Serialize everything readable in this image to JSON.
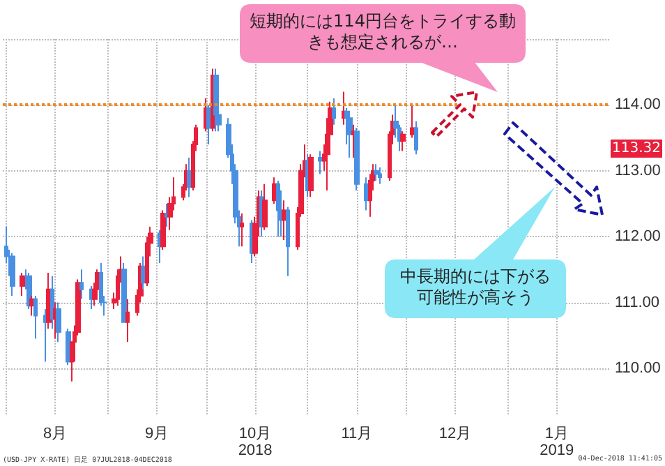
{
  "chart_data": {
    "type": "candlestick",
    "x": [
      "2018-08-01",
      "2018-08-02",
      "2018-08-03",
      "2018-08-06",
      "2018-08-07",
      "2018-08-08",
      "2018-08-09",
      "2018-08-10",
      "2018-08-13",
      "2018-08-14",
      "2018-08-15",
      "2018-08-16",
      "2018-08-17",
      "2018-08-20",
      "2018-08-21",
      "2018-08-22",
      "2018-08-23",
      "2018-08-24",
      "2018-08-27",
      "2018-08-28",
      "2018-08-29",
      "2018-08-30",
      "2018-08-31",
      "2018-09-03",
      "2018-09-04",
      "2018-09-05",
      "2018-09-06",
      "2018-09-07",
      "2018-09-10",
      "2018-09-11",
      "2018-09-12",
      "2018-09-13",
      "2018-09-14",
      "2018-09-17",
      "2018-09-18",
      "2018-09-19",
      "2018-09-20",
      "2018-09-21",
      "2018-09-24",
      "2018-09-25",
      "2018-09-26",
      "2018-09-27",
      "2018-09-28",
      "2018-10-01",
      "2018-10-02",
      "2018-10-03",
      "2018-10-04",
      "2018-10-05",
      "2018-10-08",
      "2018-10-09",
      "2018-10-10",
      "2018-10-11",
      "2018-10-12",
      "2018-10-15",
      "2018-10-16",
      "2018-10-17",
      "2018-10-18",
      "2018-10-19",
      "2018-10-22",
      "2018-10-23",
      "2018-10-24",
      "2018-10-25",
      "2018-10-26",
      "2018-10-29",
      "2018-10-30",
      "2018-10-31",
      "2018-11-01",
      "2018-11-02",
      "2018-11-05",
      "2018-11-06",
      "2018-11-07",
      "2018-11-08",
      "2018-11-09",
      "2018-11-12",
      "2018-11-13",
      "2018-11-14",
      "2018-11-15",
      "2018-11-16",
      "2018-11-19",
      "2018-11-20",
      "2018-11-21",
      "2018-11-22",
      "2018-11-23",
      "2018-11-26",
      "2018-11-27",
      "2018-11-28",
      "2018-11-29",
      "2018-11-30",
      "2018-12-03",
      "2018-12-04"
    ],
    "ohlc": [
      [
        111.85,
        112.15,
        111.6,
        111.7
      ],
      [
        111.7,
        111.8,
        111.4,
        111.7
      ],
      [
        111.7,
        111.75,
        111.1,
        111.25
      ],
      [
        111.25,
        111.45,
        111.1,
        111.4
      ],
      [
        111.4,
        111.5,
        111.2,
        111.4
      ],
      [
        111.4,
        111.45,
        110.9,
        110.95
      ],
      [
        110.95,
        111.1,
        110.8,
        111.05
      ],
      [
        111.05,
        111.1,
        110.45,
        110.8
      ],
      [
        110.8,
        110.9,
        110.1,
        110.7
      ],
      [
        110.7,
        111.45,
        110.6,
        111.2
      ],
      [
        111.2,
        111.4,
        110.6,
        110.75
      ],
      [
        110.75,
        111.0,
        110.45,
        110.9
      ],
      [
        110.9,
        111.0,
        110.4,
        110.55
      ],
      [
        110.55,
        110.6,
        110.05,
        110.1
      ],
      [
        110.1,
        110.4,
        109.8,
        110.4
      ],
      [
        110.4,
        110.65,
        110.1,
        110.55
      ],
      [
        110.55,
        111.35,
        110.5,
        111.3
      ],
      [
        111.3,
        111.5,
        111.05,
        111.2
      ],
      [
        111.2,
        111.25,
        110.9,
        111.05
      ],
      [
        111.05,
        111.3,
        110.95,
        111.2
      ],
      [
        111.2,
        111.5,
        111.05,
        111.45
      ],
      [
        111.45,
        111.6,
        110.95,
        111.0
      ],
      [
        111.0,
        111.1,
        110.8,
        111.0
      ],
      [
        111.0,
        111.15,
        110.9,
        111.05
      ],
      [
        111.05,
        111.5,
        110.95,
        111.4
      ],
      [
        111.4,
        111.7,
        111.3,
        111.5
      ],
      [
        111.5,
        111.6,
        110.7,
        110.7
      ],
      [
        110.7,
        111.05,
        110.4,
        110.85
      ],
      [
        110.85,
        111.2,
        110.8,
        111.1
      ],
      [
        111.1,
        111.6,
        111.0,
        111.55
      ],
      [
        111.55,
        111.7,
        111.2,
        111.3
      ],
      [
        111.3,
        112.0,
        111.25,
        111.9
      ],
      [
        111.9,
        112.15,
        111.7,
        112.05
      ],
      [
        112.05,
        112.1,
        111.6,
        111.85
      ],
      [
        111.85,
        112.4,
        111.8,
        112.35
      ],
      [
        112.35,
        112.5,
        112.15,
        112.3
      ],
      [
        112.3,
        112.6,
        112.1,
        112.5
      ],
      [
        112.5,
        112.9,
        112.4,
        112.6
      ],
      [
        112.6,
        112.8,
        112.55,
        112.75
      ],
      [
        112.75,
        113.1,
        112.7,
        113.0
      ],
      [
        113.0,
        113.2,
        112.6,
        112.75
      ],
      [
        112.75,
        113.45,
        112.7,
        113.4
      ],
      [
        113.4,
        113.7,
        113.3,
        113.65
      ],
      [
        113.65,
        114.1,
        113.6,
        113.95
      ],
      [
        113.95,
        114.0,
        113.4,
        113.65
      ],
      [
        113.65,
        114.55,
        113.6,
        114.45
      ],
      [
        114.45,
        114.55,
        113.6,
        113.85
      ],
      [
        113.85,
        114.0,
        113.6,
        113.7
      ],
      [
        113.7,
        113.8,
        113.2,
        113.25
      ],
      [
        113.25,
        113.4,
        112.8,
        113.0
      ],
      [
        113.0,
        113.1,
        112.2,
        112.3
      ],
      [
        112.3,
        112.4,
        111.85,
        112.15
      ],
      [
        112.15,
        112.35,
        111.85,
        112.2
      ],
      [
        112.2,
        112.25,
        111.6,
        111.75
      ],
      [
        111.75,
        112.3,
        111.7,
        112.2
      ],
      [
        112.2,
        112.7,
        112.0,
        112.6
      ],
      [
        112.6,
        112.7,
        112.0,
        112.15
      ],
      [
        112.15,
        112.8,
        112.1,
        112.55
      ],
      [
        112.55,
        112.9,
        112.5,
        112.8
      ],
      [
        112.8,
        112.85,
        112.0,
        112.4
      ],
      [
        112.4,
        112.7,
        112.0,
        112.25
      ],
      [
        112.25,
        112.55,
        111.95,
        112.4
      ],
      [
        112.4,
        112.45,
        111.4,
        111.85
      ],
      [
        111.85,
        112.45,
        111.8,
        112.35
      ],
      [
        112.35,
        113.1,
        112.3,
        113.0
      ],
      [
        113.0,
        113.4,
        112.9,
        113.15
      ],
      [
        113.15,
        113.25,
        112.6,
        112.7
      ],
      [
        112.7,
        113.25,
        112.6,
        113.2
      ],
      [
        113.2,
        113.3,
        112.95,
        113.15
      ],
      [
        113.15,
        113.4,
        113.0,
        113.25
      ],
      [
        113.25,
        113.8,
        112.7,
        113.55
      ],
      [
        113.55,
        114.05,
        113.5,
        113.95
      ],
      [
        113.95,
        114.1,
        113.7,
        113.8
      ],
      [
        113.8,
        114.2,
        113.7,
        113.9
      ],
      [
        113.9,
        113.95,
        113.4,
        113.8
      ],
      [
        113.8,
        113.9,
        113.2,
        113.55
      ],
      [
        113.55,
        113.7,
        113.2,
        113.6
      ],
      [
        113.6,
        113.65,
        112.7,
        112.8
      ],
      [
        112.8,
        112.9,
        112.4,
        112.55
      ],
      [
        112.55,
        112.95,
        112.3,
        112.85
      ],
      [
        112.85,
        113.1,
        112.7,
        113.0
      ],
      [
        113.0,
        113.1,
        112.85,
        112.95
      ],
      [
        112.95,
        113.05,
        112.8,
        112.9
      ],
      [
        112.9,
        113.6,
        112.85,
        113.55
      ],
      [
        113.55,
        113.85,
        113.4,
        113.75
      ],
      [
        113.75,
        114.0,
        113.5,
        113.65
      ],
      [
        113.65,
        113.7,
        113.3,
        113.45
      ],
      [
        113.45,
        113.6,
        113.3,
        113.55
      ],
      [
        113.55,
        114.0,
        113.5,
        113.65
      ],
      [
        113.65,
        113.75,
        113.25,
        113.32
      ]
    ],
    "colors": [
      "#4a90e2",
      "#4a90e2",
      "#4a90e2",
      "#e8203c",
      "#4a90e2",
      "#4a90e2",
      "#e8203c",
      "#4a90e2",
      "#4a90e2",
      "#e8203c",
      "#4a90e2",
      "#e8203c",
      "#4a90e2",
      "#4a90e2",
      "#e8203c",
      "#e8203c",
      "#e8203c",
      "#4a90e2",
      "#4a90e2",
      "#e8203c",
      "#e8203c",
      "#4a90e2",
      "#4a90e2",
      "#e8203c",
      "#e8203c",
      "#e8203c",
      "#4a90e2",
      "#e8203c",
      "#e8203c",
      "#e8203c",
      "#4a90e2",
      "#e8203c",
      "#e8203c",
      "#4a90e2",
      "#e8203c",
      "#4a90e2",
      "#e8203c",
      "#e8203c",
      "#e8203c",
      "#e8203c",
      "#4a90e2",
      "#e8203c",
      "#e8203c",
      "#e8203c",
      "#4a90e2",
      "#e8203c",
      "#4a90e2",
      "#4a90e2",
      "#4a90e2",
      "#4a90e2",
      "#4a90e2",
      "#4a90e2",
      "#e8203c",
      "#4a90e2",
      "#e8203c",
      "#e8203c",
      "#4a90e2",
      "#e8203c",
      "#e8203c",
      "#4a90e2",
      "#4a90e2",
      "#e8203c",
      "#4a90e2",
      "#e8203c",
      "#e8203c",
      "#e8203c",
      "#4a90e2",
      "#e8203c",
      "#4a90e2",
      "#e8203c",
      "#e8203c",
      "#e8203c",
      "#4a90e2",
      "#e8203c",
      "#4a90e2",
      "#4a90e2",
      "#e8203c",
      "#4a90e2",
      "#4a90e2",
      "#e8203c",
      "#e8203c",
      "#4a90e2",
      "#4a90e2",
      "#e8203c",
      "#e8203c",
      "#4a90e2",
      "#4a90e2",
      "#e8203c",
      "#e8203c",
      "#4a90e2"
    ],
    "xlim": [
      "2018-07-31",
      "2019-02-01"
    ],
    "xticks": [
      {
        "value": "2018-08-01",
        "label": null
      },
      {
        "value": "2018-08-16",
        "label": "8月"
      },
      {
        "value": "2018-09-01",
        "label": null
      },
      {
        "value": "2018-09-16",
        "label": "9月"
      },
      {
        "value": "2018-10-01",
        "label": null
      },
      {
        "value": "2018-10-16",
        "label": "10月\n2018"
      },
      {
        "value": "2018-11-01",
        "label": null
      },
      {
        "value": "2018-11-16",
        "label": "11月"
      },
      {
        "value": "2018-12-01",
        "label": null
      },
      {
        "value": "2018-12-16",
        "label": "12月"
      },
      {
        "value": "2019-01-01",
        "label": null
      },
      {
        "value": "2019-01-16",
        "label": "1月\n2019"
      }
    ],
    "ylim": [
      109.3,
      115
    ],
    "yticks": [
      {
        "value": 110,
        "label": "110.00"
      },
      {
        "value": 111,
        "label": "111.00"
      },
      {
        "value": 112,
        "label": "112.00"
      },
      {
        "value": 113,
        "label": "113.00"
      },
      {
        "value": 114,
        "label": "114.00"
      },
      {
        "value": 115,
        "label": null
      }
    ],
    "grid": true,
    "ref_lines": [
      {
        "axis": "y",
        "value": 114,
        "color": "#f08a24",
        "line_style": "dotted"
      }
    ],
    "annotations": [
      "短期的には114円台をトライする動きも想定されるが…",
      "中長期的には下がる可能性が高そう",
      {
        "text": "113.32",
        "y": 113.32
      },
      "(USD-JPY X-RATE) 日足 07JUL2018-04DEC2018",
      "04-Dec-2018 11:41:05"
    ]
  }
}
